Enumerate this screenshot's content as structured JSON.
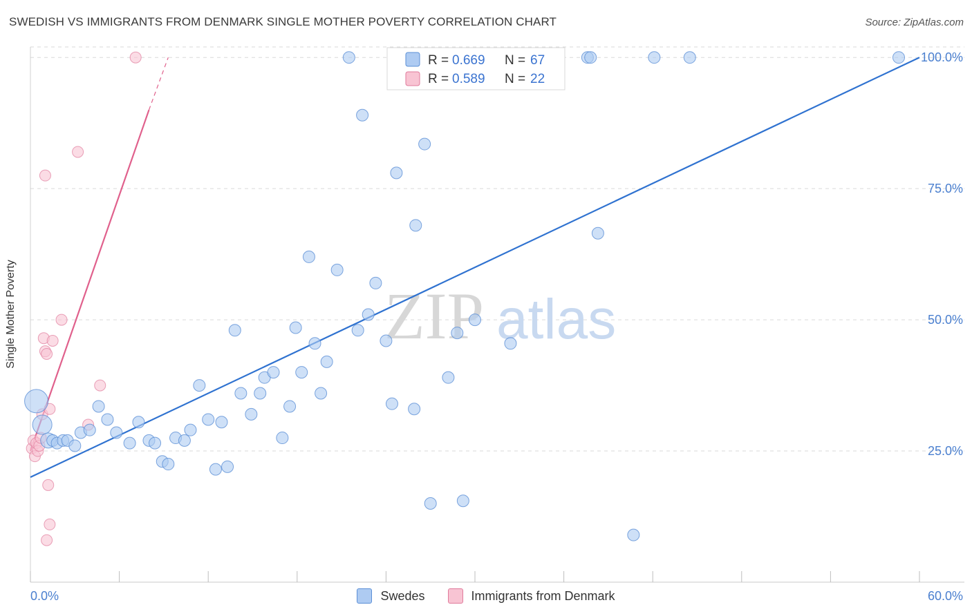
{
  "title": "SWEDISH VS IMMIGRANTS FROM DENMARK SINGLE MOTHER POVERTY CORRELATION CHART",
  "source": "Source: ZipAtlas.com",
  "watermark": {
    "part1": "ZIP",
    "part2": "atlas"
  },
  "legend_stats": [
    {
      "r_label": "R =",
      "r_value": "0.669",
      "n_label": "N =",
      "n_value": "67"
    },
    {
      "r_label": "R =",
      "r_value": "0.589",
      "n_label": "N =",
      "n_value": "22"
    }
  ],
  "colors": {
    "swedes_fill": "#aecbf2",
    "swedes_stroke": "#5b8fd6",
    "swedes_line": "#2f72d0",
    "denmark_fill": "#f8c4d3",
    "denmark_stroke": "#e07a9b",
    "denmark_line": "#e0608c",
    "grid": "#d9d9d9",
    "axis_text": "#4a7fcf"
  },
  "chart_data": {
    "type": "scatter",
    "title": "SWEDISH VS IMMIGRANTS FROM DENMARK SINGLE MOTHER POVERTY CORRELATION CHART",
    "xlabel": "",
    "ylabel": "Single Mother Poverty",
    "xlim": [
      0,
      60
    ],
    "ylim": [
      0,
      102
    ],
    "x_tick_labels": [
      "0.0%",
      "60.0%"
    ],
    "y_ticks": [
      25,
      50,
      75,
      100
    ],
    "y_tick_labels": [
      "25.0%",
      "50.0%",
      "75.0%",
      "100.0%"
    ],
    "grid": true,
    "legend_position": "top-center",
    "series": [
      {
        "name": "Swedes",
        "points": [
          [
            0.4,
            34.5
          ],
          [
            0.8,
            30.0
          ],
          [
            1.2,
            27.0
          ],
          [
            1.5,
            27.0
          ],
          [
            1.8,
            26.5
          ],
          [
            2.2,
            27.0
          ],
          [
            2.5,
            27.0
          ],
          [
            3.0,
            26.0
          ],
          [
            3.4,
            28.5
          ],
          [
            4.0,
            29.0
          ],
          [
            4.6,
            33.5
          ],
          [
            5.2,
            31.0
          ],
          [
            5.8,
            28.5
          ],
          [
            6.7,
            26.5
          ],
          [
            7.3,
            30.5
          ],
          [
            8.0,
            27.0
          ],
          [
            8.4,
            26.5
          ],
          [
            8.9,
            23.0
          ],
          [
            9.3,
            22.5
          ],
          [
            9.8,
            27.5
          ],
          [
            10.4,
            27.0
          ],
          [
            10.8,
            29.0
          ],
          [
            11.4,
            37.5
          ],
          [
            12.0,
            31.0
          ],
          [
            12.5,
            21.5
          ],
          [
            12.9,
            30.5
          ],
          [
            13.3,
            22.0
          ],
          [
            13.8,
            48.0
          ],
          [
            14.2,
            36.0
          ],
          [
            14.9,
            32.0
          ],
          [
            15.5,
            36.0
          ],
          [
            15.8,
            39.0
          ],
          [
            16.4,
            40.0
          ],
          [
            17.0,
            27.5
          ],
          [
            17.5,
            33.5
          ],
          [
            17.9,
            48.5
          ],
          [
            18.3,
            40.0
          ],
          [
            18.8,
            62.0
          ],
          [
            19.2,
            45.5
          ],
          [
            19.6,
            36.0
          ],
          [
            20.0,
            42.0
          ],
          [
            20.7,
            59.5
          ],
          [
            21.5,
            100.0
          ],
          [
            22.1,
            48.0
          ],
          [
            22.4,
            89.0
          ],
          [
            22.8,
            51.0
          ],
          [
            23.3,
            57.0
          ],
          [
            24.0,
            46.0
          ],
          [
            24.4,
            34.0
          ],
          [
            24.7,
            78.0
          ],
          [
            25.9,
            33.0
          ],
          [
            26.0,
            68.0
          ],
          [
            26.6,
            83.5
          ],
          [
            27.0,
            15.0
          ],
          [
            28.2,
            39.0
          ],
          [
            28.8,
            47.5
          ],
          [
            29.2,
            15.5
          ],
          [
            30.0,
            50.0
          ],
          [
            31.1,
            100.0
          ],
          [
            32.4,
            45.5
          ],
          [
            37.6,
            100.0
          ],
          [
            37.8,
            100.0
          ],
          [
            38.3,
            66.5
          ],
          [
            40.7,
            9.0
          ],
          [
            42.1,
            100.0
          ],
          [
            44.5,
            100.0
          ],
          [
            58.6,
            100.0
          ]
        ],
        "trend": {
          "x": [
            0,
            60
          ],
          "y": [
            20.0,
            100.0
          ]
        }
      },
      {
        "name": "Immigrants from Denmark",
        "points": [
          [
            0.1,
            25.5
          ],
          [
            0.2,
            27.0
          ],
          [
            0.3,
            24.0
          ],
          [
            0.4,
            26.5
          ],
          [
            0.5,
            25.0
          ],
          [
            0.6,
            26.0
          ],
          [
            0.7,
            27.5
          ],
          [
            0.8,
            32.0
          ],
          [
            1.0,
            44.0
          ],
          [
            1.1,
            43.5
          ],
          [
            1.2,
            18.5
          ],
          [
            1.3,
            11.0
          ],
          [
            1.1,
            8.0
          ],
          [
            0.9,
            46.5
          ],
          [
            1.3,
            33.0
          ],
          [
            1.5,
            46.0
          ],
          [
            2.1,
            50.0
          ],
          [
            3.9,
            30.0
          ],
          [
            4.7,
            37.5
          ],
          [
            1.0,
            77.5
          ],
          [
            3.2,
            82.0
          ],
          [
            7.1,
            100.0
          ]
        ],
        "trend": {
          "x": [
            0,
            8.0
          ],
          "y": [
            25.0,
            90.0
          ]
        },
        "trend_dashed": {
          "x": [
            8.0,
            9.3
          ],
          "y": [
            90.0,
            100.0
          ]
        }
      }
    ]
  }
}
